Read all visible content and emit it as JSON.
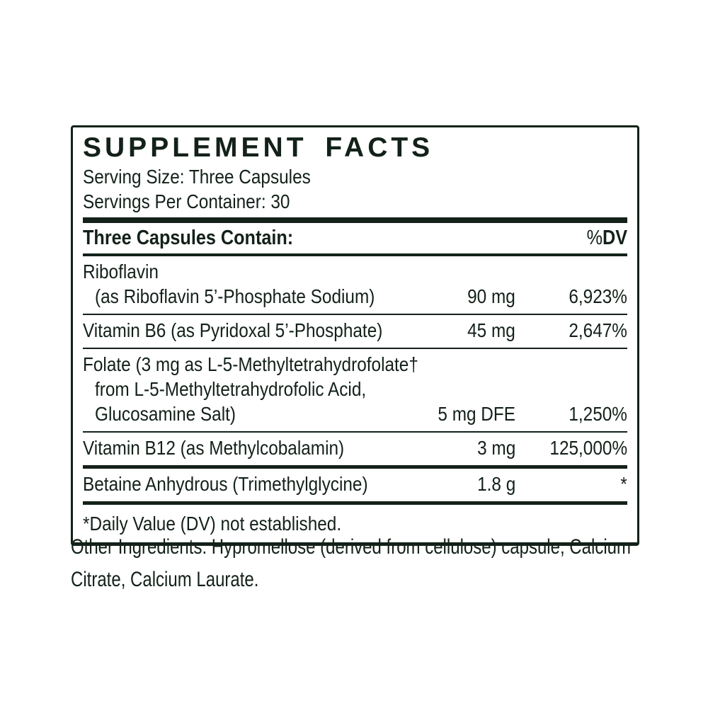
{
  "colors": {
    "ink": "#132119",
    "background": "#ffffff"
  },
  "label": {
    "title": "SUPPLEMENT FACTS",
    "serving_size": "Serving Size: Three Capsules",
    "servings_per_container": "Servings Per Container: 30",
    "columns": {
      "contain": "Three Capsules Contain:",
      "dv_percent_sign": "%",
      "dv_abbrev": "DV"
    },
    "rows": [
      {
        "lines": [
          {
            "text": "Riboflavin",
            "indent": false
          },
          {
            "text": "(as Riboflavin 5’-Phosphate Sodium)",
            "indent": true
          }
        ],
        "amount": "90 mg",
        "dv": "6,923%",
        "sep_after": "thin"
      },
      {
        "lines": [
          {
            "text": "Vitamin B6 (as Pyridoxal 5’-Phosphate)",
            "indent": false
          }
        ],
        "amount": "45 mg",
        "dv": "2,647%",
        "sep_after": "thin"
      },
      {
        "lines": [
          {
            "text": "Folate (3 mg as L-5-Methyltetrahydrofolate†",
            "indent": false
          },
          {
            "text": "from L-5-Methyltetrahydrofolic Acid,",
            "indent": true
          },
          {
            "text": "Glucosamine Salt)",
            "indent": true
          }
        ],
        "amount": "5 mg DFE",
        "dv": "1,250%",
        "sep_after": "thin"
      },
      {
        "lines": [
          {
            "text": "Vitamin B12 (as Methylcobalamin)",
            "indent": false
          }
        ],
        "amount": "3 mg",
        "dv": "125,000%",
        "sep_after": "thick"
      },
      {
        "lines": [
          {
            "text": "Betaine Anhydrous (Trimethylglycine)",
            "indent": false
          }
        ],
        "amount": "1.8 g",
        "dv": "*",
        "sep_after": "thick"
      }
    ],
    "footnote": "*Daily Value (DV) not established."
  },
  "other_ingredients": "Other Ingredients: Hypromellose (derived from cellulose) capsule, Calcium Citrate, Calcium Laurate."
}
